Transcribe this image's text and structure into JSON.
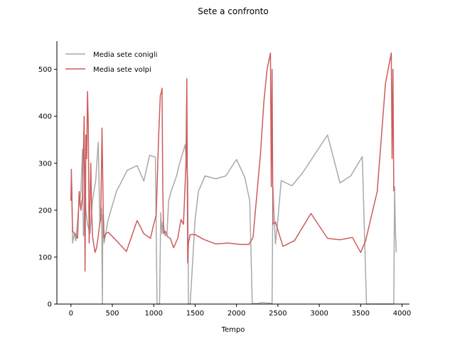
{
  "chart_data": {
    "type": "line",
    "title": "Sete a confronto",
    "xlabel": "Tempo",
    "ylabel": "",
    "xlim": [
      -170,
      4090
    ],
    "ylim": [
      0,
      560
    ],
    "xticks": [
      0,
      500,
      1000,
      1500,
      2000,
      2500,
      3000,
      3500,
      4000
    ],
    "yticks": [
      0,
      100,
      200,
      300,
      400,
      500
    ],
    "grid": false,
    "legend": "top-left",
    "series": [
      {
        "name": "Media sete conigli",
        "color": "#a9a9a9",
        "points": [
          [
            0,
            225
          ],
          [
            10,
            255
          ],
          [
            20,
            130
          ],
          [
            40,
            150
          ],
          [
            60,
            135
          ],
          [
            90,
            200
          ],
          [
            120,
            240
          ],
          [
            140,
            330
          ],
          [
            150,
            145
          ],
          [
            160,
            150
          ],
          [
            170,
            300
          ],
          [
            180,
            200
          ],
          [
            200,
            170
          ],
          [
            230,
            150
          ],
          [
            260,
            220
          ],
          [
            300,
            265
          ],
          [
            330,
            345
          ],
          [
            350,
            170
          ],
          [
            370,
            205
          ],
          [
            380,
            0
          ],
          [
            385,
            190
          ],
          [
            400,
            130
          ],
          [
            420,
            150
          ],
          [
            450,
            180
          ],
          [
            550,
            240
          ],
          [
            680,
            285
          ],
          [
            800,
            295
          ],
          [
            880,
            262
          ],
          [
            950,
            317
          ],
          [
            1020,
            313
          ],
          [
            1040,
            0
          ],
          [
            1070,
            0
          ],
          [
            1085,
            195
          ],
          [
            1100,
            150
          ],
          [
            1110,
            175
          ],
          [
            1140,
            145
          ],
          [
            1160,
            150
          ],
          [
            1180,
            220
          ],
          [
            1210,
            240
          ],
          [
            1280,
            275
          ],
          [
            1300,
            292
          ],
          [
            1380,
            340
          ],
          [
            1410,
            265
          ],
          [
            1420,
            0
          ],
          [
            1440,
            0
          ],
          [
            1500,
            180
          ],
          [
            1540,
            240
          ],
          [
            1620,
            273
          ],
          [
            1750,
            267
          ],
          [
            1870,
            273
          ],
          [
            2000,
            308
          ],
          [
            2100,
            270
          ],
          [
            2160,
            220
          ],
          [
            2190,
            1
          ],
          [
            2250,
            1
          ],
          [
            2300,
            3
          ],
          [
            2400,
            2
          ],
          [
            2430,
            1
          ],
          [
            2440,
            250
          ],
          [
            2470,
            128
          ],
          [
            2500,
            180
          ],
          [
            2540,
            263
          ],
          [
            2670,
            252
          ],
          [
            2800,
            280
          ],
          [
            3100,
            360
          ],
          [
            3250,
            258
          ],
          [
            3380,
            273
          ],
          [
            3520,
            314
          ],
          [
            3570,
            0
          ],
          [
            3900,
            0
          ],
          [
            3910,
            250
          ],
          [
            3920,
            155
          ],
          [
            3930,
            110
          ]
        ]
      },
      {
        "name": "Media sete volpi",
        "color": "#cd5c5c",
        "points": [
          [
            0,
            220
          ],
          [
            5,
            287
          ],
          [
            10,
            230
          ],
          [
            20,
            155
          ],
          [
            50,
            150
          ],
          [
            80,
            140
          ],
          [
            100,
            240
          ],
          [
            120,
            200
          ],
          [
            140,
            230
          ],
          [
            160,
            400
          ],
          [
            170,
            70
          ],
          [
            180,
            360
          ],
          [
            190,
            310
          ],
          [
            200,
            453
          ],
          [
            210,
            380
          ],
          [
            220,
            130
          ],
          [
            230,
            215
          ],
          [
            240,
            300
          ],
          [
            250,
            200
          ],
          [
            260,
            145
          ],
          [
            290,
            110
          ],
          [
            310,
            120
          ],
          [
            330,
            145
          ],
          [
            350,
            175
          ],
          [
            360,
            180
          ],
          [
            375,
            375
          ],
          [
            390,
            200
          ],
          [
            400,
            140
          ],
          [
            420,
            150
          ],
          [
            450,
            153
          ],
          [
            550,
            135
          ],
          [
            670,
            112
          ],
          [
            800,
            178
          ],
          [
            880,
            150
          ],
          [
            960,
            140
          ],
          [
            1000,
            170
          ],
          [
            1030,
            190
          ],
          [
            1060,
            360
          ],
          [
            1080,
            445
          ],
          [
            1090,
            450
          ],
          [
            1100,
            460
          ],
          [
            1110,
            240
          ],
          [
            1120,
            150
          ],
          [
            1140,
            155
          ],
          [
            1170,
            143
          ],
          [
            1200,
            140
          ],
          [
            1240,
            120
          ],
          [
            1290,
            140
          ],
          [
            1330,
            180
          ],
          [
            1360,
            170
          ],
          [
            1390,
            300
          ],
          [
            1400,
            480
          ],
          [
            1410,
            88
          ],
          [
            1420,
            130
          ],
          [
            1440,
            148
          ],
          [
            1500,
            148
          ],
          [
            1600,
            138
          ],
          [
            1750,
            128
          ],
          [
            1900,
            130
          ],
          [
            2050,
            127
          ],
          [
            2150,
            127
          ],
          [
            2200,
            142
          ],
          [
            2290,
            320
          ],
          [
            2330,
            430
          ],
          [
            2370,
            500
          ],
          [
            2410,
            535
          ],
          [
            2420,
            250
          ],
          [
            2430,
            500
          ],
          [
            2440,
            170
          ],
          [
            2470,
            175
          ],
          [
            2560,
            123
          ],
          [
            2700,
            135
          ],
          [
            2900,
            193
          ],
          [
            3100,
            140
          ],
          [
            3250,
            137
          ],
          [
            3400,
            142
          ],
          [
            3500,
            110
          ],
          [
            3560,
            135
          ],
          [
            3700,
            240
          ],
          [
            3800,
            470
          ],
          [
            3870,
            535
          ],
          [
            3880,
            310
          ],
          [
            3890,
            500
          ],
          [
            3900,
            240
          ]
        ]
      }
    ]
  }
}
